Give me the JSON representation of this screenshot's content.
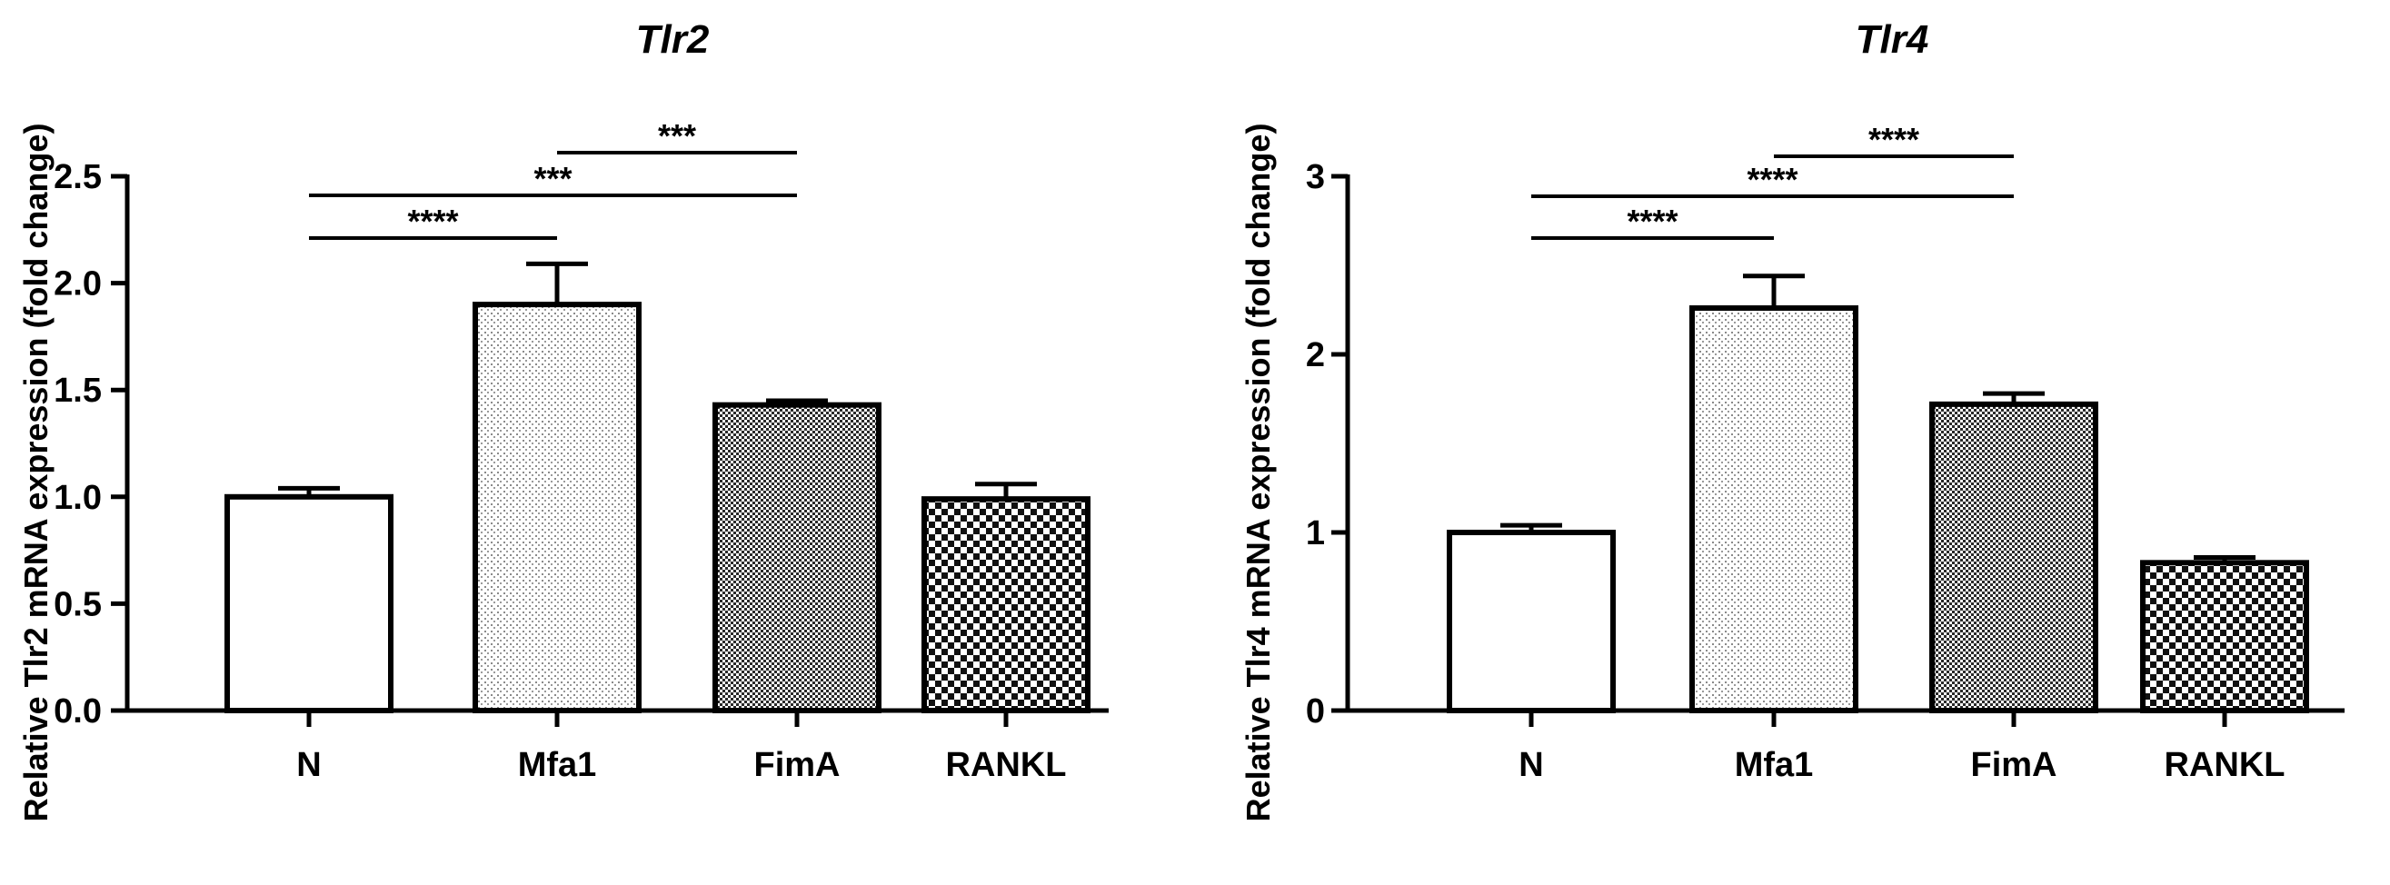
{
  "chart_data": [
    {
      "type": "bar",
      "title": "Tlr2",
      "ylabel": "Relative Tlr2 mRNA expression (fold change)",
      "xlabel": "",
      "categories": [
        "N",
        "Mfa1",
        "FimA",
        "RANKL"
      ],
      "values": [
        1.0,
        1.9,
        1.43,
        0.99
      ],
      "errors": [
        0.04,
        0.19,
        0.02,
        0.07
      ],
      "ylim": [
        0,
        2.5
      ],
      "yticks": [
        "0.0",
        "0.5",
        "1.0",
        "1.5",
        "2.0",
        "2.5"
      ],
      "ytick_values": [
        0,
        0.5,
        1.0,
        1.5,
        2.0,
        2.5
      ],
      "bar_fills": [
        "white",
        "fine-dots",
        "dense-checker",
        "checker"
      ],
      "significance": [
        {
          "from": "N",
          "to": "Mfa1",
          "label": "****"
        },
        {
          "from": "N",
          "to": "FimA",
          "label": "***"
        },
        {
          "from": "Mfa1",
          "to": "FimA",
          "label": "***"
        }
      ]
    },
    {
      "type": "bar",
      "title": "Tlr4",
      "ylabel": "Relative Tlr4 mRNA expression (fold change)",
      "xlabel": "",
      "categories": [
        "N",
        "Mfa1",
        "FimA",
        "RANKL"
      ],
      "values": [
        1.0,
        2.26,
        1.72,
        0.83
      ],
      "errors": [
        0.04,
        0.18,
        0.06,
        0.03
      ],
      "ylim": [
        0,
        3
      ],
      "yticks": [
        "0",
        "1",
        "2",
        "3"
      ],
      "ytick_values": [
        0,
        1,
        2,
        3
      ],
      "bar_fills": [
        "white",
        "fine-dots",
        "dense-checker",
        "checker"
      ],
      "significance": [
        {
          "from": "N",
          "to": "Mfa1",
          "label": "****"
        },
        {
          "from": "N",
          "to": "FimA",
          "label": "****"
        },
        {
          "from": "Mfa1",
          "to": "FimA",
          "label": "****"
        }
      ]
    }
  ],
  "colors": {
    "ink": "#000000",
    "background": "#ffffff"
  }
}
